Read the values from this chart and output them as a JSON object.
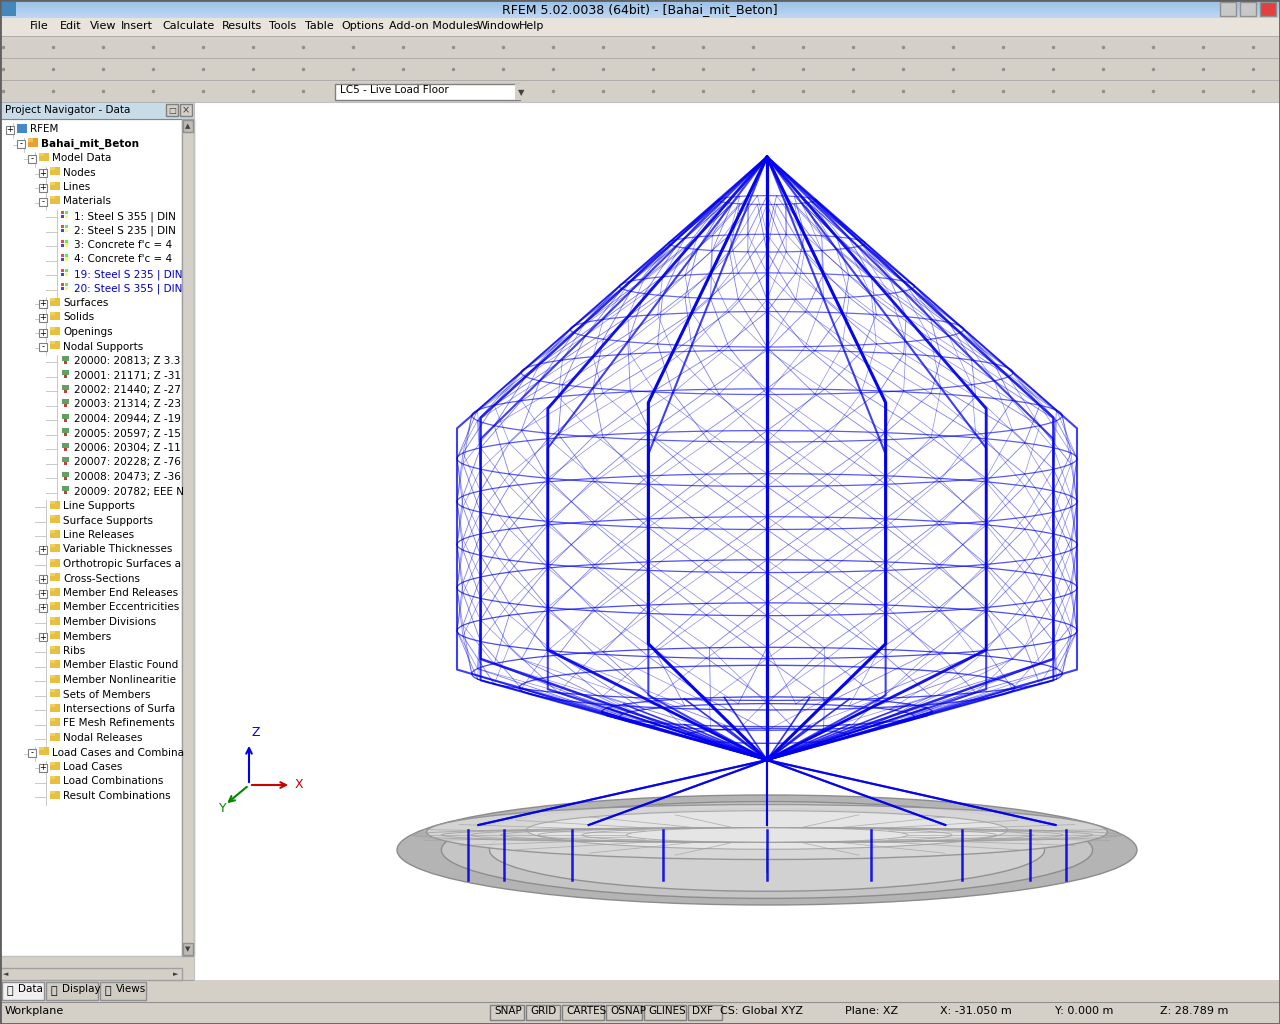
{
  "title_bar": "RFEM 5.02.0038 (64bit) - [Bahai_mit_Beton]",
  "title_bar_bg": "#a8c8e8",
  "menu_items": [
    "File",
    "Edit",
    "View",
    "Insert",
    "Calculate",
    "Results",
    "Tools",
    "Table",
    "Options",
    "Add-on Modules",
    "Window",
    "Help"
  ],
  "panel_bg": "#d4d0c8",
  "nav_title": "Project Navigator - Data",
  "nav_bg": "#ffffff",
  "nav_tree": [
    {
      "level": 0,
      "text": "RFEM",
      "bold": false,
      "blue": false,
      "expand": false
    },
    {
      "level": 1,
      "text": "Bahai_mit_Beton",
      "bold": true,
      "blue": false,
      "expand": true
    },
    {
      "level": 2,
      "text": "Model Data",
      "bold": false,
      "blue": false,
      "expand": true
    },
    {
      "level": 3,
      "text": "Nodes",
      "bold": false,
      "blue": false,
      "expand": false
    },
    {
      "level": 3,
      "text": "Lines",
      "bold": false,
      "blue": false,
      "expand": false
    },
    {
      "level": 3,
      "text": "Materials",
      "bold": false,
      "blue": false,
      "expand": true
    },
    {
      "level": 4,
      "text": "1: Steel S 355 | DIN",
      "bold": false,
      "blue": false
    },
    {
      "level": 4,
      "text": "2: Steel S 235 | DIN",
      "bold": false,
      "blue": false
    },
    {
      "level": 4,
      "text": "3: Concrete f'c = 4⁠",
      "bold": false,
      "blue": false
    },
    {
      "level": 4,
      "text": "4: Concrete f'c = 4⁠",
      "bold": false,
      "blue": false
    },
    {
      "level": 4,
      "text": "19: Steel S 235 | DIN",
      "bold": false,
      "blue": true
    },
    {
      "level": 4,
      "text": "20: Steel S 355 | DIN",
      "bold": false,
      "blue": true
    },
    {
      "level": 3,
      "text": "Surfaces",
      "bold": false,
      "blue": false,
      "expand": false
    },
    {
      "level": 3,
      "text": "Solids",
      "bold": false,
      "blue": false,
      "expand": false
    },
    {
      "level": 3,
      "text": "Openings",
      "bold": false,
      "blue": false,
      "expand": false
    },
    {
      "level": 3,
      "text": "Nodal Supports",
      "bold": false,
      "blue": false,
      "expand": true
    },
    {
      "level": 4,
      "text": "20000: 20813; Z 3.3",
      "bold": false,
      "blue": false
    },
    {
      "level": 4,
      "text": "20001: 21171; Z -31",
      "bold": false,
      "blue": false
    },
    {
      "level": 4,
      "text": "20002: 21440; Z -27",
      "bold": false,
      "blue": false
    },
    {
      "level": 4,
      "text": "20003: 21314; Z -23",
      "bold": false,
      "blue": false
    },
    {
      "level": 4,
      "text": "20004: 20944; Z -19",
      "bold": false,
      "blue": false
    },
    {
      "level": 4,
      "text": "20005: 20597; Z -15",
      "bold": false,
      "blue": false
    },
    {
      "level": 4,
      "text": "20006: 20304; Z -11",
      "bold": false,
      "blue": false
    },
    {
      "level": 4,
      "text": "20007: 20228; Z -76",
      "bold": false,
      "blue": false
    },
    {
      "level": 4,
      "text": "20008: 20473; Z -36",
      "bold": false,
      "blue": false
    },
    {
      "level": 4,
      "text": "20009: 20782; EEE N",
      "bold": false,
      "blue": false
    },
    {
      "level": 3,
      "text": "Line Supports",
      "bold": false,
      "blue": false
    },
    {
      "level": 3,
      "text": "Surface Supports",
      "bold": false,
      "blue": false
    },
    {
      "level": 3,
      "text": "Line Releases",
      "bold": false,
      "blue": false
    },
    {
      "level": 3,
      "text": "Variable Thicknesses",
      "bold": false,
      "blue": false,
      "expand": false
    },
    {
      "level": 3,
      "text": "Orthotropic Surfaces a",
      "bold": false,
      "blue": false
    },
    {
      "level": 3,
      "text": "Cross-Sections",
      "bold": false,
      "blue": false,
      "expand": false
    },
    {
      "level": 3,
      "text": "Member End Releases",
      "bold": false,
      "blue": false,
      "expand": false
    },
    {
      "level": 3,
      "text": "Member Eccentricities",
      "bold": false,
      "blue": false,
      "expand": false
    },
    {
      "level": 3,
      "text": "Member Divisions",
      "bold": false,
      "blue": false
    },
    {
      "level": 3,
      "text": "Members",
      "bold": false,
      "blue": false,
      "expand": false
    },
    {
      "level": 3,
      "text": "Ribs",
      "bold": false,
      "blue": false
    },
    {
      "level": 3,
      "text": "Member Elastic Found",
      "bold": false,
      "blue": false
    },
    {
      "level": 3,
      "text": "Member Nonlinearitie",
      "bold": false,
      "blue": false
    },
    {
      "level": 3,
      "text": "Sets of Members",
      "bold": false,
      "blue": false
    },
    {
      "level": 3,
      "text": "Intersections of Surfa",
      "bold": false,
      "blue": false
    },
    {
      "level": 3,
      "text": "FE Mesh Refinements",
      "bold": false,
      "blue": false
    },
    {
      "level": 3,
      "text": "Nodal Releases",
      "bold": false,
      "blue": false
    },
    {
      "level": 2,
      "text": "Load Cases and Combina",
      "bold": false,
      "blue": false,
      "expand": true
    },
    {
      "level": 3,
      "text": "Load Cases",
      "bold": false,
      "blue": false,
      "expand": false
    },
    {
      "level": 3,
      "text": "Load Combinations",
      "bold": false,
      "blue": false
    },
    {
      "level": 3,
      "text": "Result Combinations",
      "bold": false,
      "blue": false
    }
  ],
  "viewport_bg": "#ffffff",
  "struct_color": "#0000ee",
  "struct_color2": "#2222cc",
  "base_color": "#b8b8b8",
  "base_color2": "#d0d0d0",
  "toolbar_bg": "#d4d0c8",
  "lc_dropdown": "LC5 - Live Load Floor",
  "tab_text": "Data",
  "tab2_text": "Display",
  "tab3_text": "Views",
  "statusbar_bg": "#d4d0c8",
  "snap_items": [
    "SNAP",
    "GRID",
    "CARTES",
    "OSNAP",
    "GLINES",
    "DXF"
  ]
}
